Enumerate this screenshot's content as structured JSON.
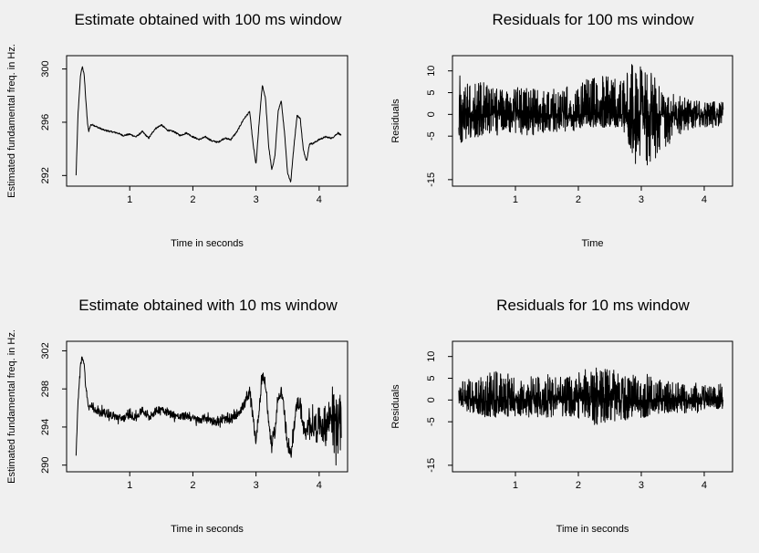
{
  "chart_data": [
    {
      "type": "line",
      "title": "Estimate obtained with 100 ms window",
      "xlabel": "Time in seconds",
      "ylabel": "Estimated fundamental freq. in Hz.",
      "xlim": [
        0.0,
        4.45
      ],
      "ylim": [
        291.2,
        301.0
      ],
      "xticks": [
        1,
        2,
        3,
        4
      ],
      "yticks": [
        292,
        296,
        300
      ],
      "series": [
        {
          "x": [
            0.15,
            0.18,
            0.22,
            0.25,
            0.28,
            0.3,
            0.33,
            0.35,
            0.38,
            0.42,
            0.5,
            0.6,
            0.7,
            0.8,
            0.9,
            1.0,
            1.1,
            1.2,
            1.3,
            1.4,
            1.5,
            1.6,
            1.7,
            1.8,
            1.9,
            2.0,
            2.1,
            2.2,
            2.3,
            2.4,
            2.5,
            2.6,
            2.7,
            2.8,
            2.9,
            2.95,
            3.0,
            3.05,
            3.1,
            3.15,
            3.2,
            3.25,
            3.3,
            3.35,
            3.4,
            3.45,
            3.5,
            3.55,
            3.6,
            3.65,
            3.7,
            3.75,
            3.8,
            3.85,
            3.9,
            4.0,
            4.1,
            4.2,
            4.3,
            4.35
          ],
          "y": [
            292.0,
            296.5,
            299.5,
            300.2,
            299.5,
            298.0,
            296.0,
            295.3,
            295.8,
            295.8,
            295.6,
            295.4,
            295.3,
            295.2,
            295.0,
            295.1,
            294.9,
            295.3,
            294.8,
            295.5,
            295.8,
            295.4,
            295.3,
            295.0,
            295.2,
            294.9,
            294.7,
            294.9,
            294.6,
            294.5,
            294.8,
            294.7,
            295.3,
            296.2,
            296.8,
            294.5,
            292.8,
            296.0,
            298.8,
            297.8,
            294.2,
            292.4,
            293.5,
            296.8,
            297.6,
            295.3,
            292.2,
            291.5,
            294.2,
            296.5,
            296.3,
            293.9,
            293.1,
            294.4,
            294.4,
            294.7,
            294.9,
            294.8,
            295.2,
            295.0
          ]
        }
      ]
    },
    {
      "type": "line",
      "title": "Residuals for 100 ms window",
      "xlabel": "Time",
      "ylabel": "Residuals",
      "xlim": [
        0.0,
        4.45
      ],
      "ylim": [
        -16.5,
        13.5
      ],
      "xticks": [
        1,
        2,
        3,
        4
      ],
      "yticks": [
        -15,
        -5,
        0,
        5,
        10
      ],
      "series": [
        {
          "x": [
            0.1,
            0.3,
            0.5,
            0.7,
            0.9,
            1.1,
            1.3,
            1.5,
            1.7,
            1.9,
            2.1,
            2.3,
            2.5,
            2.7,
            2.85,
            2.95,
            3.05,
            3.15,
            3.25,
            3.35,
            3.45,
            3.55,
            3.7,
            3.9,
            4.1,
            4.3
          ],
          "y_upper": [
            10,
            7,
            8,
            6,
            5,
            7,
            6,
            6,
            6,
            7,
            8,
            9,
            9,
            8,
            12,
            12,
            10,
            10,
            8,
            5,
            5,
            5,
            4,
            3,
            3,
            3
          ],
          "y_lower": [
            -7,
            -6,
            -5,
            -5,
            -4,
            -5,
            -5,
            -4,
            -4,
            -4,
            -3,
            -3,
            -3,
            -3,
            -9,
            -13,
            -15,
            -14,
            -10,
            -8,
            -7,
            -5,
            -4,
            -3,
            -3,
            -3
          ]
        }
      ]
    },
    {
      "type": "line",
      "title": "Estimate obtained with 10 ms window",
      "xlabel": "Time in seconds",
      "ylabel": "Estimated fundamental freq. in Hz.",
      "xlim": [
        0.0,
        4.45
      ],
      "ylim": [
        289.3,
        303.0
      ],
      "xticks": [
        1,
        2,
        3,
        4
      ],
      "yticks": [
        290,
        294,
        298,
        302
      ],
      "series": [
        {
          "x": [
            0.15,
            0.18,
            0.22,
            0.25,
            0.28,
            0.3,
            0.33,
            0.35,
            0.38,
            0.42,
            0.5,
            0.6,
            0.7,
            0.8,
            0.9,
            1.0,
            1.1,
            1.2,
            1.3,
            1.4,
            1.5,
            1.6,
            1.7,
            1.8,
            1.9,
            2.0,
            2.1,
            2.2,
            2.3,
            2.4,
            2.5,
            2.6,
            2.7,
            2.8,
            2.9,
            2.95,
            3.0,
            3.05,
            3.1,
            3.15,
            3.2,
            3.25,
            3.3,
            3.35,
            3.4,
            3.45,
            3.5,
            3.55,
            3.6,
            3.65,
            3.7,
            3.75,
            3.8,
            3.85,
            3.9,
            4.0,
            4.1,
            4.2,
            4.3,
            4.35
          ],
          "y": [
            291.0,
            296.5,
            300.5,
            301.5,
            300.5,
            298.5,
            296.8,
            296.0,
            296.2,
            296.0,
            295.6,
            295.5,
            295.3,
            295.0,
            294.9,
            295.3,
            295.0,
            295.8,
            295.0,
            295.6,
            296.0,
            295.5,
            295.3,
            295.0,
            295.2,
            294.9,
            294.7,
            295.0,
            294.7,
            294.5,
            294.8,
            294.7,
            295.4,
            296.2,
            297.5,
            295.0,
            292.5,
            296.0,
            299.5,
            298.5,
            294.5,
            292.0,
            293.5,
            297.0,
            298.0,
            295.5,
            292.0,
            291.0,
            294.0,
            296.5,
            296.5,
            294.0,
            293.0,
            294.5,
            294.0,
            294.5,
            294.0,
            295.5,
            294.0,
            294.5
          ],
          "spread": [
            0,
            0.3,
            0.3,
            0.3,
            0.3,
            0.3,
            0.3,
            0.4,
            0.4,
            0.4,
            0.5,
            0.5,
            0.5,
            0.5,
            0.5,
            0.5,
            0.5,
            0.5,
            0.5,
            0.5,
            0.5,
            0.5,
            0.5,
            0.5,
            0.5,
            0.5,
            0.5,
            0.5,
            0.5,
            0.5,
            0.5,
            0.5,
            0.6,
            0.6,
            0.7,
            0.7,
            0.7,
            0.7,
            0.7,
            0.7,
            0.7,
            0.7,
            0.7,
            0.8,
            0.8,
            0.8,
            0.8,
            0.8,
            0.8,
            0.9,
            1.0,
            1.0,
            1.2,
            1.4,
            1.6,
            2.0,
            2.5,
            3.0,
            3.5,
            4.0
          ]
        }
      ]
    },
    {
      "type": "line",
      "title": "Residuals for 10 ms window",
      "xlabel": "Time in seconds",
      "ylabel": "Residuals",
      "xlim": [
        0.0,
        4.45
      ],
      "ylim": [
        -16.5,
        13.5
      ],
      "xticks": [
        1,
        2,
        3,
        4
      ],
      "yticks": [
        -15,
        -5,
        0,
        5,
        10
      ],
      "series": [
        {
          "x": [
            0.1,
            0.3,
            0.5,
            0.7,
            0.9,
            1.1,
            1.3,
            1.5,
            1.7,
            1.9,
            2.1,
            2.3,
            2.5,
            2.7,
            2.9,
            3.1,
            3.3,
            3.5,
            3.7,
            3.9,
            4.1,
            4.3
          ],
          "y_upper": [
            4,
            5,
            6,
            7,
            6,
            5,
            6,
            6,
            6,
            6,
            7,
            8,
            7,
            7,
            6,
            6,
            5,
            4,
            4,
            4,
            3,
            4
          ],
          "y_lower": [
            -3,
            -3,
            -4,
            -4,
            -4,
            -4,
            -4,
            -4,
            -4,
            -4,
            -5,
            -6,
            -5,
            -5,
            -4,
            -4,
            -3,
            -3,
            -3,
            -3,
            -2,
            -2
          ]
        }
      ]
    }
  ]
}
